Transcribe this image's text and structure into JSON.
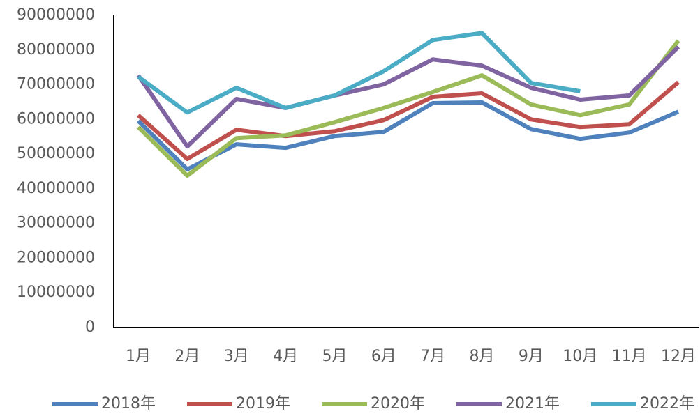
{
  "chart_data": {
    "type": "line",
    "categories": [
      "1月",
      "2月",
      "3月",
      "4月",
      "5月",
      "6月",
      "7月",
      "8月",
      "9月",
      "10月",
      "11月",
      "12月"
    ],
    "series": [
      {
        "name": "2018年",
        "color": "#4f81bd",
        "values": [
          59600000,
          45600000,
          52800000,
          51800000,
          55200000,
          56400000,
          64700000,
          64900000,
          57200000,
          54400000,
          56200000,
          62200000
        ]
      },
      {
        "name": "2019年",
        "color": "#c0504d",
        "values": [
          61200000,
          48600000,
          57000000,
          55200000,
          56600000,
          59800000,
          66500000,
          67500000,
          60000000,
          57800000,
          58600000,
          70700000
        ]
      },
      {
        "name": "2020年",
        "color": "#9bbb59",
        "values": [
          57800000,
          43800000,
          54600000,
          55400000,
          59200000,
          63300000,
          67900000,
          72700000,
          64300000,
          61200000,
          64300000,
          82700000
        ]
      },
      {
        "name": "2021年",
        "color": "#8064a2",
        "values": [
          72700000,
          52200000,
          65900000,
          63300000,
          66900000,
          70100000,
          77300000,
          75500000,
          69100000,
          65700000,
          66900000,
          80900000
        ]
      },
      {
        "name": "2022年",
        "color": "#4bacc6",
        "values": [
          72300000,
          62000000,
          69100000,
          63300000,
          66900000,
          73900000,
          82900000,
          84900000,
          70500000,
          68100000,
          null,
          null
        ]
      }
    ],
    "ylim": [
      0,
      90000000
    ],
    "yticks": [
      0,
      10000000,
      20000000,
      30000000,
      40000000,
      50000000,
      60000000,
      70000000,
      80000000,
      90000000
    ],
    "grid": false,
    "legend": "bottom"
  }
}
